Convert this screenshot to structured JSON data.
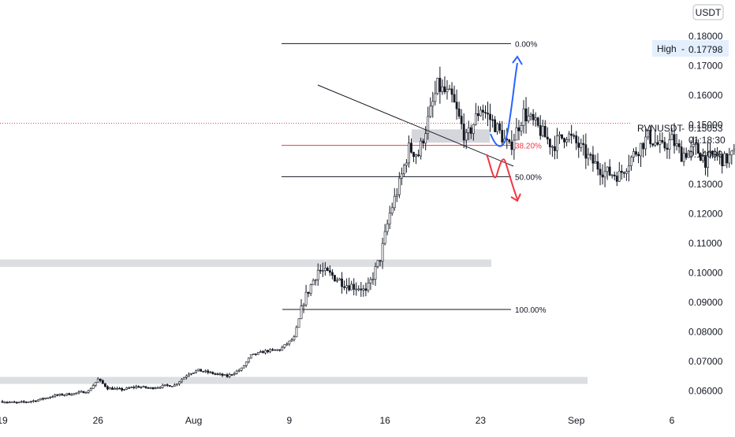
{
  "currency_badge": "USDT",
  "chart_data": {
    "type": "candlestick",
    "symbol": "RVNUSDT",
    "quote_currency": "USDT",
    "y_axis": {
      "range": [
        0.0555,
        0.1874
      ],
      "ticks": [
        {
          "value": 0.06,
          "label": "0.06000"
        },
        {
          "value": 0.07,
          "label": "0.07000"
        },
        {
          "value": 0.08,
          "label": "0.08000"
        },
        {
          "value": 0.09,
          "label": "0.09000"
        },
        {
          "value": 0.1,
          "label": "0.10000"
        },
        {
          "value": 0.11,
          "label": "0.11000"
        },
        {
          "value": 0.12,
          "label": "0.12000"
        },
        {
          "value": 0.13,
          "label": "0.13000"
        },
        {
          "value": 0.14,
          "label": "0.14000"
        },
        {
          "value": 0.15,
          "label": "0.15000"
        },
        {
          "value": 0.16,
          "label": "0.16000"
        },
        {
          "value": 0.17,
          "label": "0.17000"
        },
        {
          "value": 0.18,
          "label": "0.18000"
        }
      ]
    },
    "x_axis": {
      "range": [
        -0.03,
        2.11
      ],
      "note": "x values in weeks after 2021-07-19",
      "ticks": [
        {
          "x": 0.0,
          "label": "19"
        },
        {
          "x": 1.0,
          "label": "26"
        },
        {
          "x": 2.0,
          "label": "Aug"
        },
        {
          "x": 3.0,
          "label": "9"
        },
        {
          "x": 4.0,
          "label": "16"
        },
        {
          "x": 5.0,
          "label": "23"
        },
        {
          "x": 6.0,
          "label": "Sep"
        },
        {
          "x": 7.0,
          "label": "6"
        }
      ]
    },
    "price_series": [
      [
        0.0,
        0.0565
      ],
      [
        0.15,
        0.056
      ],
      [
        0.35,
        0.0568
      ],
      [
        0.55,
        0.0585
      ],
      [
        0.75,
        0.0592
      ],
      [
        0.9,
        0.06
      ],
      [
        1.0,
        0.064
      ],
      [
        1.1,
        0.061
      ],
      [
        1.25,
        0.0605
      ],
      [
        1.4,
        0.0615
      ],
      [
        1.55,
        0.061
      ],
      [
        1.7,
        0.0618
      ],
      [
        1.8,
        0.062
      ],
      [
        1.95,
        0.066
      ],
      [
        2.05,
        0.067
      ],
      [
        2.2,
        0.066
      ],
      [
        2.35,
        0.065
      ],
      [
        2.5,
        0.0675
      ],
      [
        2.6,
        0.072
      ],
      [
        2.75,
        0.0735
      ],
      [
        2.9,
        0.074
      ],
      [
        3.05,
        0.078
      ],
      [
        3.15,
        0.0905
      ],
      [
        3.3,
        0.101
      ],
      [
        3.45,
        0.099
      ],
      [
        3.6,
        0.096
      ],
      [
        3.75,
        0.095
      ],
      [
        3.8,
        0.093
      ],
      [
        3.95,
        0.105
      ],
      [
        4.05,
        0.12
      ],
      [
        4.15,
        0.13
      ],
      [
        4.25,
        0.142
      ],
      [
        4.35,
        0.14
      ],
      [
        4.55,
        0.163
      ],
      [
        4.7,
        0.159
      ],
      [
        4.85,
        0.145
      ],
      [
        5.0,
        0.156
      ],
      [
        5.15,
        0.15
      ],
      [
        5.3,
        0.142
      ],
      [
        5.45,
        0.154
      ],
      [
        5.6,
        0.149
      ],
      [
        5.75,
        0.143
      ],
      [
        5.9,
        0.147
      ],
      [
        6.05,
        0.142
      ],
      [
        6.15,
        0.138
      ],
      [
        6.3,
        0.134
      ],
      [
        6.45,
        0.133
      ],
      [
        6.6,
        0.14
      ],
      [
        6.75,
        0.146
      ],
      [
        6.9,
        0.142
      ],
      [
        7.0,
        0.145
      ],
      [
        7.1,
        0.14
      ],
      [
        7.25,
        0.142
      ],
      [
        7.35,
        0.138
      ],
      [
        7.45,
        0.14
      ],
      [
        7.55,
        0.138
      ],
      [
        7.7,
        0.141
      ],
      [
        7.85,
        0.143
      ]
    ],
    "last_candle": {
      "open": 0.143,
      "high": 0.1525,
      "low": 0.142,
      "close": 0.1505
    },
    "fibonacci": {
      "levels": [
        {
          "label": "0.00%",
          "price": 0.1775
        },
        {
          "label": "38.20%",
          "price": 0.1431
        },
        {
          "label": "50.00%",
          "price": 0.1325
        },
        {
          "label": "100.00%",
          "price": 0.0876
        }
      ]
    },
    "price_labels": [
      {
        "text": "High",
        "value_label": "0.17798",
        "price": 0.17798
      },
      {
        "text": "RVNUSDT",
        "value_label": "0.15053",
        "countdown": "01:18:30",
        "price": 0.15053
      }
    ],
    "zones": [
      {
        "low": 0.102,
        "high": 0.1045
      },
      {
        "low": 0.0624,
        "high": 0.0648
      },
      {
        "low": 0.144,
        "high": 0.1485
      }
    ],
    "projections": [
      {
        "direction": "up",
        "color": "#2962ff"
      },
      {
        "direction": "down",
        "color": "#f23645"
      }
    ],
    "colors": {
      "candle": "#131722",
      "fib_38": "#f23645",
      "current_price_line": "#f23645",
      "zone": "#b2b5be",
      "axis_text": "#131722",
      "high_label_bg": "#e3effd"
    }
  }
}
